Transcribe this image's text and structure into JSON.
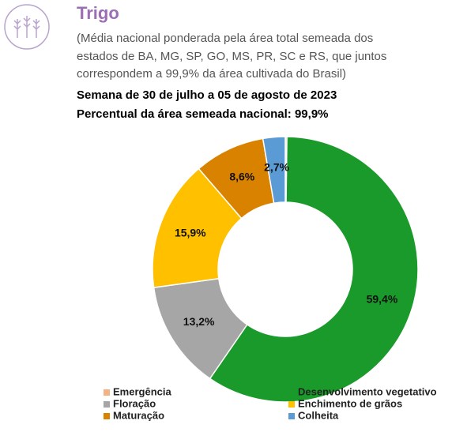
{
  "chart_data": {
    "type": "pie",
    "title": "Trigo",
    "subtitle": [
      "(Média nacional ponderada pela área total semeada dos",
      "estados de BA, MG, SP, GO, MS, PR, SC e RS, que juntos",
      "correspondem a 99,9% da área cultivada do Brasil)"
    ],
    "headings": [
      "Semana de 30 de julho a 05 de agosto de 2023",
      "Percentual da área semeada nacional: 99,9%"
    ],
    "categories": [
      "Emergência",
      "Desenvolvimento vegetativo",
      "Floração",
      "Enchimento de grãos",
      "Maturação",
      "Colheita"
    ],
    "values": [
      0.2,
      59.4,
      13.2,
      15.9,
      8.6,
      2.7
    ],
    "value_labels": [
      null,
      "59,4%",
      "13,2%",
      "15,9%",
      "8,6%",
      "2,7%"
    ],
    "colors": [
      "#f4b183",
      "#1a9a2a",
      "#a6a6a6",
      "#ffc000",
      "#d98200",
      "#5b9bd5"
    ]
  }
}
